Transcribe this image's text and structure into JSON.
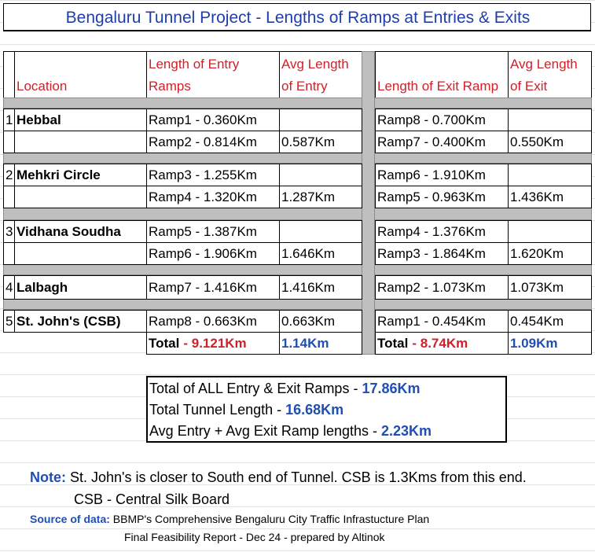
{
  "title": "Bengaluru Tunnel Project - Lengths of Ramps at Entries & Exits",
  "header": {
    "location": "Location",
    "entry": "Length of Entry Ramps",
    "avg_entry": "Avg Length of Entry",
    "exit": "Length of Exit Ramp",
    "avg_exit": "Avg Length of Exit"
  },
  "rows": [
    {
      "index": "1",
      "location": "Hebbal",
      "lines": [
        {
          "entry": "Ramp1 - 0.360Km",
          "exit": "Ramp8 - 0.700Km"
        },
        {
          "entry": "Ramp2 - 0.814Km",
          "avg_entry": "0.587Km",
          "exit": "Ramp7 - 0.400Km",
          "avg_exit": "0.550Km"
        }
      ]
    },
    {
      "index": "2",
      "location": "Mehkri Circle",
      "lines": [
        {
          "entry": "Ramp3 - 1.255Km",
          "exit": "Ramp6 - 1.910Km"
        },
        {
          "entry": "Ramp4 - 1.320Km",
          "avg_entry": "1.287Km",
          "exit": "Ramp5 - 0.963Km",
          "avg_exit": "1.436Km"
        }
      ]
    },
    {
      "index": "3",
      "location": "Vidhana Soudha",
      "lines": [
        {
          "entry": "Ramp5 - 1.387Km",
          "exit": "Ramp4 - 1.376Km"
        },
        {
          "entry": "Ramp6 - 1.906Km",
          "avg_entry": "1.646Km",
          "exit": "Ramp3 - 1.864Km",
          "avg_exit": "1.620Km"
        }
      ]
    },
    {
      "index": "4",
      "location": "Lalbagh",
      "lines": [
        {
          "entry": "Ramp7 - 1.416Km",
          "avg_entry": "1.416Km",
          "exit": "Ramp2 - 1.073Km",
          "avg_exit": "1.073Km"
        }
      ]
    },
    {
      "index": "5",
      "location": "St. John's (CSB)",
      "lines": [
        {
          "entry": "Ramp8 - 0.663Km",
          "avg_entry": "0.663Km",
          "exit": "Ramp1 - 0.454Km",
          "avg_exit": "0.454Km"
        }
      ]
    }
  ],
  "totals": {
    "entry": {
      "label": "Total",
      "value": "- 9.121Km"
    },
    "avg_entry": "1.14Km",
    "exit": {
      "label": "Total",
      "value": "- 8.74Km"
    },
    "avg_exit": "1.09Km"
  },
  "summary": [
    {
      "label": "Total of ALL Entry & Exit Ramps -",
      "value": "17.86Km"
    },
    {
      "label": "Total Tunnel Length -",
      "value": "16.68Km"
    },
    {
      "label": "Avg Entry + Avg Exit Ramp lengths -",
      "value": "2.23Km"
    }
  ],
  "note": {
    "label": "Note:",
    "text": "St. John's is closer to South end of Tunnel. CSB is 1.3Kms from this end.",
    "abbreviation": "CSB - Central Silk Board"
  },
  "source": {
    "label": "Source of data:",
    "text": "BBMP's Comprehensive Bengaluru City Traffic Infrastucture Plan",
    "text2": "Final Feasibility Report - Dec 24 - prepared by Altinok"
  }
}
